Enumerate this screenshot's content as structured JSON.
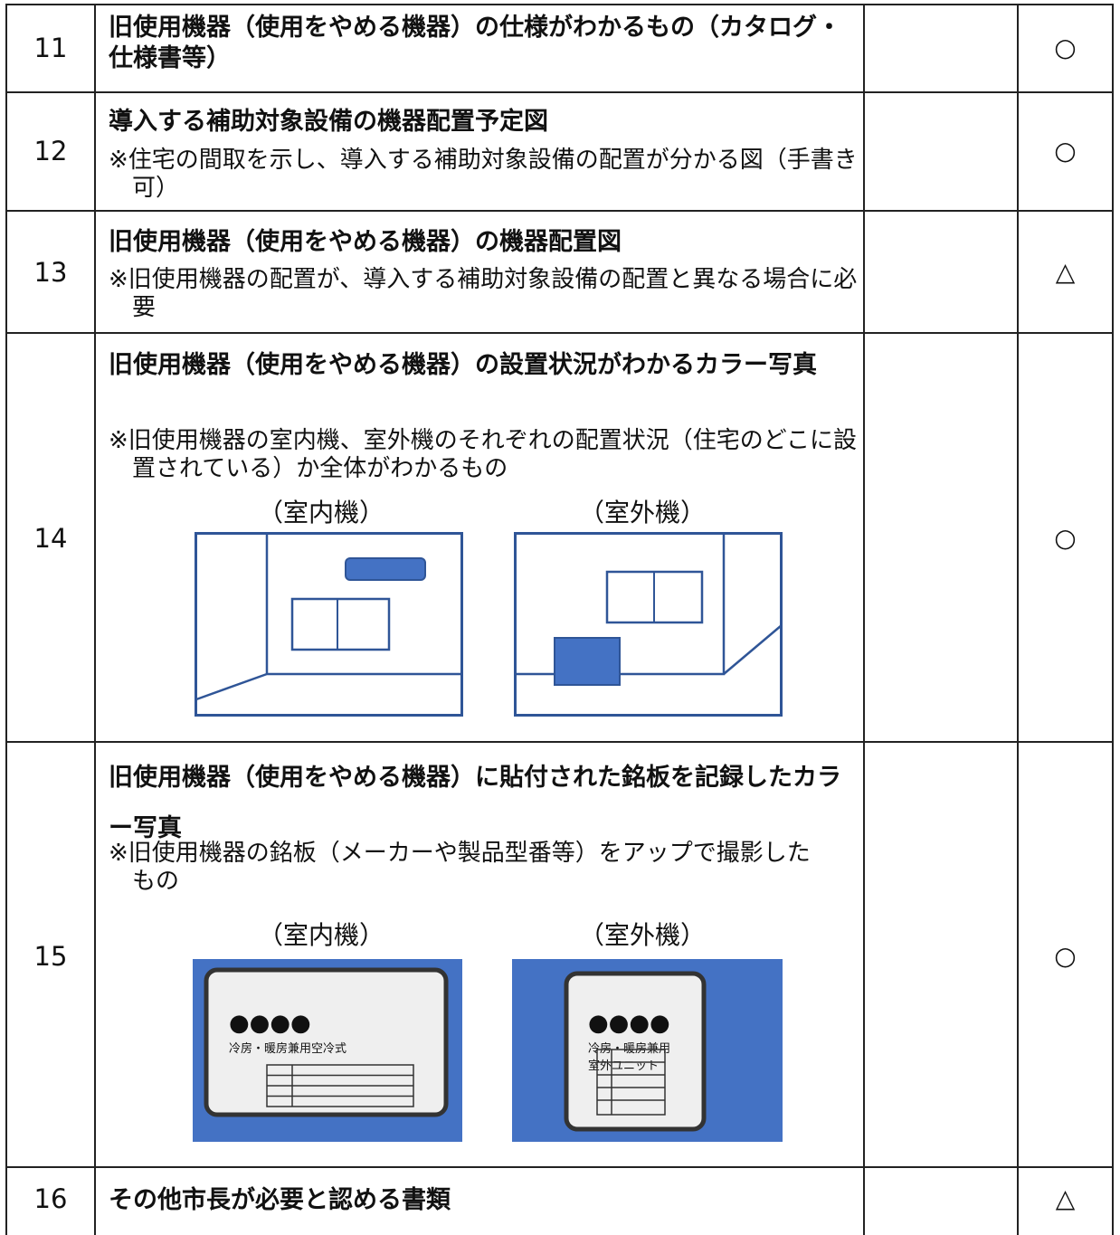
{
  "table": {
    "rows": [
      {
        "no": "11",
        "title": "旧使用機器（使用をやめる機器）の仕様がわかるもの（カタログ・仕様書等）",
        "mark": "○"
      },
      {
        "no": "12",
        "title": "導入する補助対象設備の機器配置予定図",
        "note": "※住宅の間取を示し、導入する補助対象設備の配置が分かる図（手書き可）",
        "mark": "○"
      },
      {
        "no": "13",
        "title": "旧使用機器（使用をやめる機器）の機器配置図",
        "note": "※旧使用機器の配置が、導入する補助対象設備の配置と異なる場合に必要",
        "mark": "△"
      },
      {
        "no": "14",
        "title": "旧使用機器（使用をやめる機器）の設置状況がわかるカラー写真",
        "note": "※旧使用機器の室内機、室外機のそれぞれの配置状況（住宅のどこに設置されている）か全体がわかるもの",
        "figures": [
          {
            "label": "（室内機）"
          },
          {
            "label": "（室外機）"
          }
        ],
        "mark": "○"
      },
      {
        "no": "15",
        "title": "旧使用機器（使用をやめる機器）に貼付された銘板を記録したカラー写真",
        "note": "※旧使用機器の銘板（メーカーや製品型番等）をアップで撮影したもの",
        "figures": [
          {
            "label": "（室内機）",
            "dots": "●●●●",
            "lines": [
              "冷房・暖房兼用空冷式"
            ]
          },
          {
            "label": "（室外機）",
            "dots": "●●●●",
            "lines": [
              "冷房・暖房兼用",
              "室外ユニット"
            ]
          }
        ],
        "mark": "○"
      },
      {
        "no": "16",
        "title": "その他市長が必要と認める書類",
        "mark": "△"
      }
    ]
  }
}
